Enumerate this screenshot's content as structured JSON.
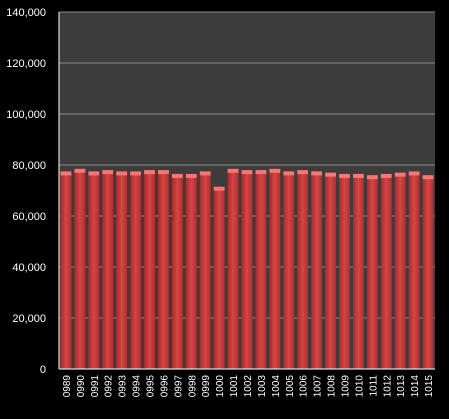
{
  "chart_data": {
    "type": "bar",
    "categories": [
      "0989",
      "0990",
      "0991",
      "0992",
      "0993",
      "0994",
      "0995",
      "0996",
      "0997",
      "0998",
      "0999",
      "1000",
      "1001",
      "1002",
      "1003",
      "1004",
      "1005",
      "1006",
      "1007",
      "1008",
      "1009",
      "1010",
      "1011",
      "1012",
      "1013",
      "1014",
      "1015"
    ],
    "values": [
      77500,
      78500,
      77500,
      78000,
      77500,
      77500,
      78000,
      78000,
      76500,
      76500,
      77500,
      71500,
      78500,
      78000,
      78000,
      78500,
      77500,
      78000,
      77500,
      77000,
      76500,
      76500,
      76000,
      76500,
      77000,
      77500,
      76000
    ],
    "title": "",
    "xlabel": "",
    "ylabel": "",
    "ylim": [
      0,
      140000
    ],
    "yticks": [
      0,
      20000,
      40000,
      60000,
      80000,
      100000,
      120000,
      140000
    ],
    "ytick_labels": [
      "0",
      "20,000",
      "40,000",
      "60,000",
      "80,000",
      "100,000",
      "120,000",
      "140,000"
    ],
    "grid": true,
    "legend": "none",
    "colors": {
      "bar": "#d23a3a",
      "bar_top": "#f07a7a",
      "plot_background": "#3c3c3c",
      "page_background": "#000000",
      "gridline": "#8a8a8a",
      "text": "#ffffff"
    }
  }
}
